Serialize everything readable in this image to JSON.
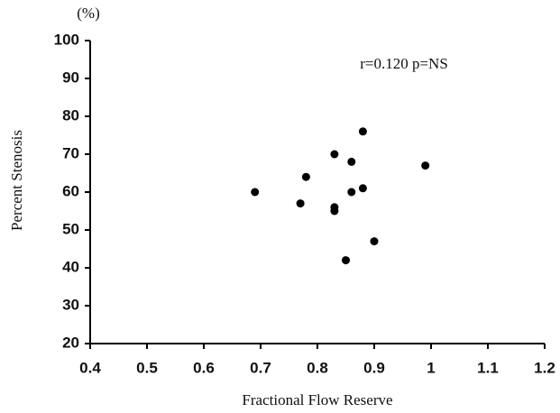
{
  "chart_data": {
    "type": "scatter",
    "x_label": "Fractional Flow Reserve",
    "y_label": "Percent Stenosis",
    "y_unit": "(%)",
    "annotation": "r=0.120  p=NS",
    "color": "#000000",
    "x": [
      0.69,
      0.77,
      0.78,
      0.83,
      0.83,
      0.83,
      0.86,
      0.86,
      0.88,
      0.88,
      0.85,
      0.9,
      0.99
    ],
    "values": [
      60,
      57,
      64,
      70,
      56,
      55,
      68,
      60,
      76,
      61,
      42,
      47,
      67
    ],
    "xlim": [
      0.4,
      1.2
    ],
    "xticks": [
      0.4,
      0.5,
      0.6,
      0.7,
      0.8,
      0.9,
      1,
      1.1,
      1.2
    ],
    "ylim": [
      20,
      100
    ],
    "yticks": [
      20,
      30,
      40,
      50,
      60,
      70,
      80,
      90,
      100
    ]
  }
}
